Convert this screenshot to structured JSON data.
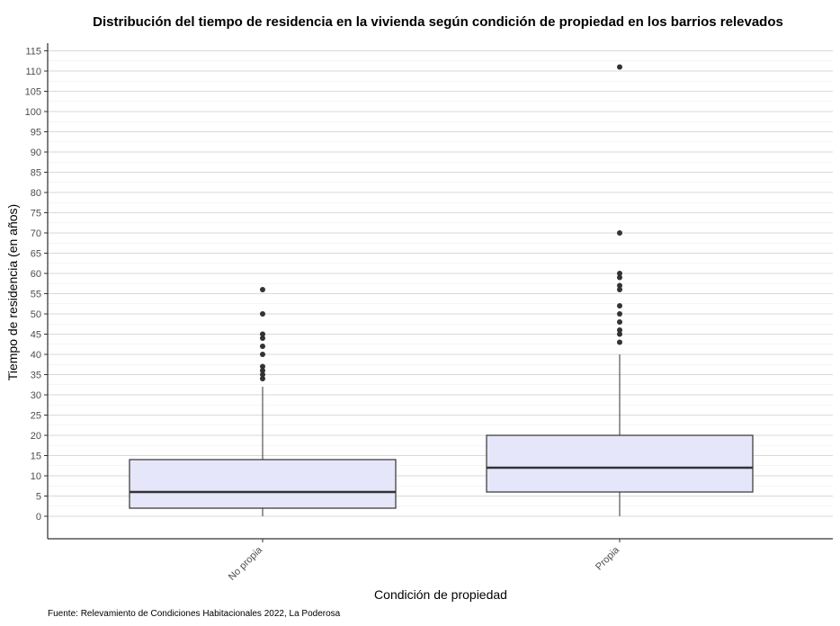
{
  "chart_data": {
    "type": "boxplot",
    "title": "Distribución del tiempo de residencia en la vivienda según condición de propiedad en los barrios relevados",
    "xlabel": "Condición de propiedad",
    "ylabel": "Tiempo de residencia (en años)",
    "caption": "Fuente: Relevamiento de Condiciones Habitacionales 2022, La Poderosa",
    "ylim": [
      -5,
      116
    ],
    "yticks": [
      0,
      5,
      10,
      15,
      20,
      25,
      30,
      35,
      40,
      45,
      50,
      55,
      60,
      65,
      70,
      75,
      80,
      85,
      90,
      95,
      100,
      105,
      110,
      115
    ],
    "grid": true,
    "categories": [
      "No propia",
      "Propia"
    ],
    "boxes": [
      {
        "category": "No propia",
        "min": 0,
        "q1": 2,
        "median": 6,
        "q3": 14,
        "max": 32,
        "outliers": [
          34,
          35,
          36,
          37,
          40,
          42,
          44,
          45,
          50,
          56
        ]
      },
      {
        "category": "Propia",
        "min": 0,
        "q1": 6,
        "median": 12,
        "q3": 20,
        "max": 40,
        "outliers": [
          43,
          45,
          46,
          48,
          50,
          52,
          56,
          57,
          59,
          60,
          70,
          111
        ]
      }
    ],
    "box_fill": "#e6e6fa",
    "box_stroke": "#333333"
  }
}
